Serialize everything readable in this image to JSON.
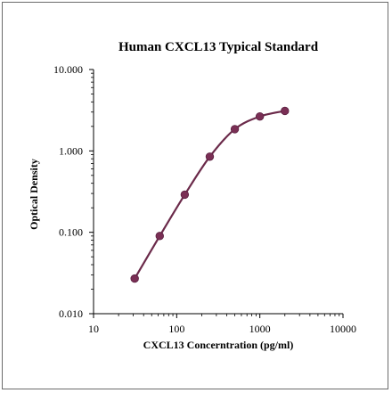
{
  "chart_data": {
    "type": "line",
    "title": "Human CXCL13 Typical Standard",
    "xlabel": "CXCL13 Concerntration (pg/ml)",
    "ylabel": "Optical Density",
    "x_scale": "log",
    "y_scale": "log",
    "xlim": [
      10,
      10000
    ],
    "ylim": [
      0.01,
      10
    ],
    "x_ticks": [
      "10",
      "100",
      "1000",
      "10000"
    ],
    "y_ticks": [
      "0.010",
      "0.100",
      "1.000",
      "10.000"
    ],
    "grid": false,
    "legend": "none",
    "series": [
      {
        "x": [
          31.25,
          62.5,
          125,
          250,
          500,
          1000,
          2000
        ],
        "y": [
          0.027,
          0.09,
          0.29,
          0.85,
          1.85,
          2.65,
          3.1
        ]
      }
    ],
    "colors": {
      "line": "#6b2a4a",
      "marker": "#7a2f55"
    }
  }
}
